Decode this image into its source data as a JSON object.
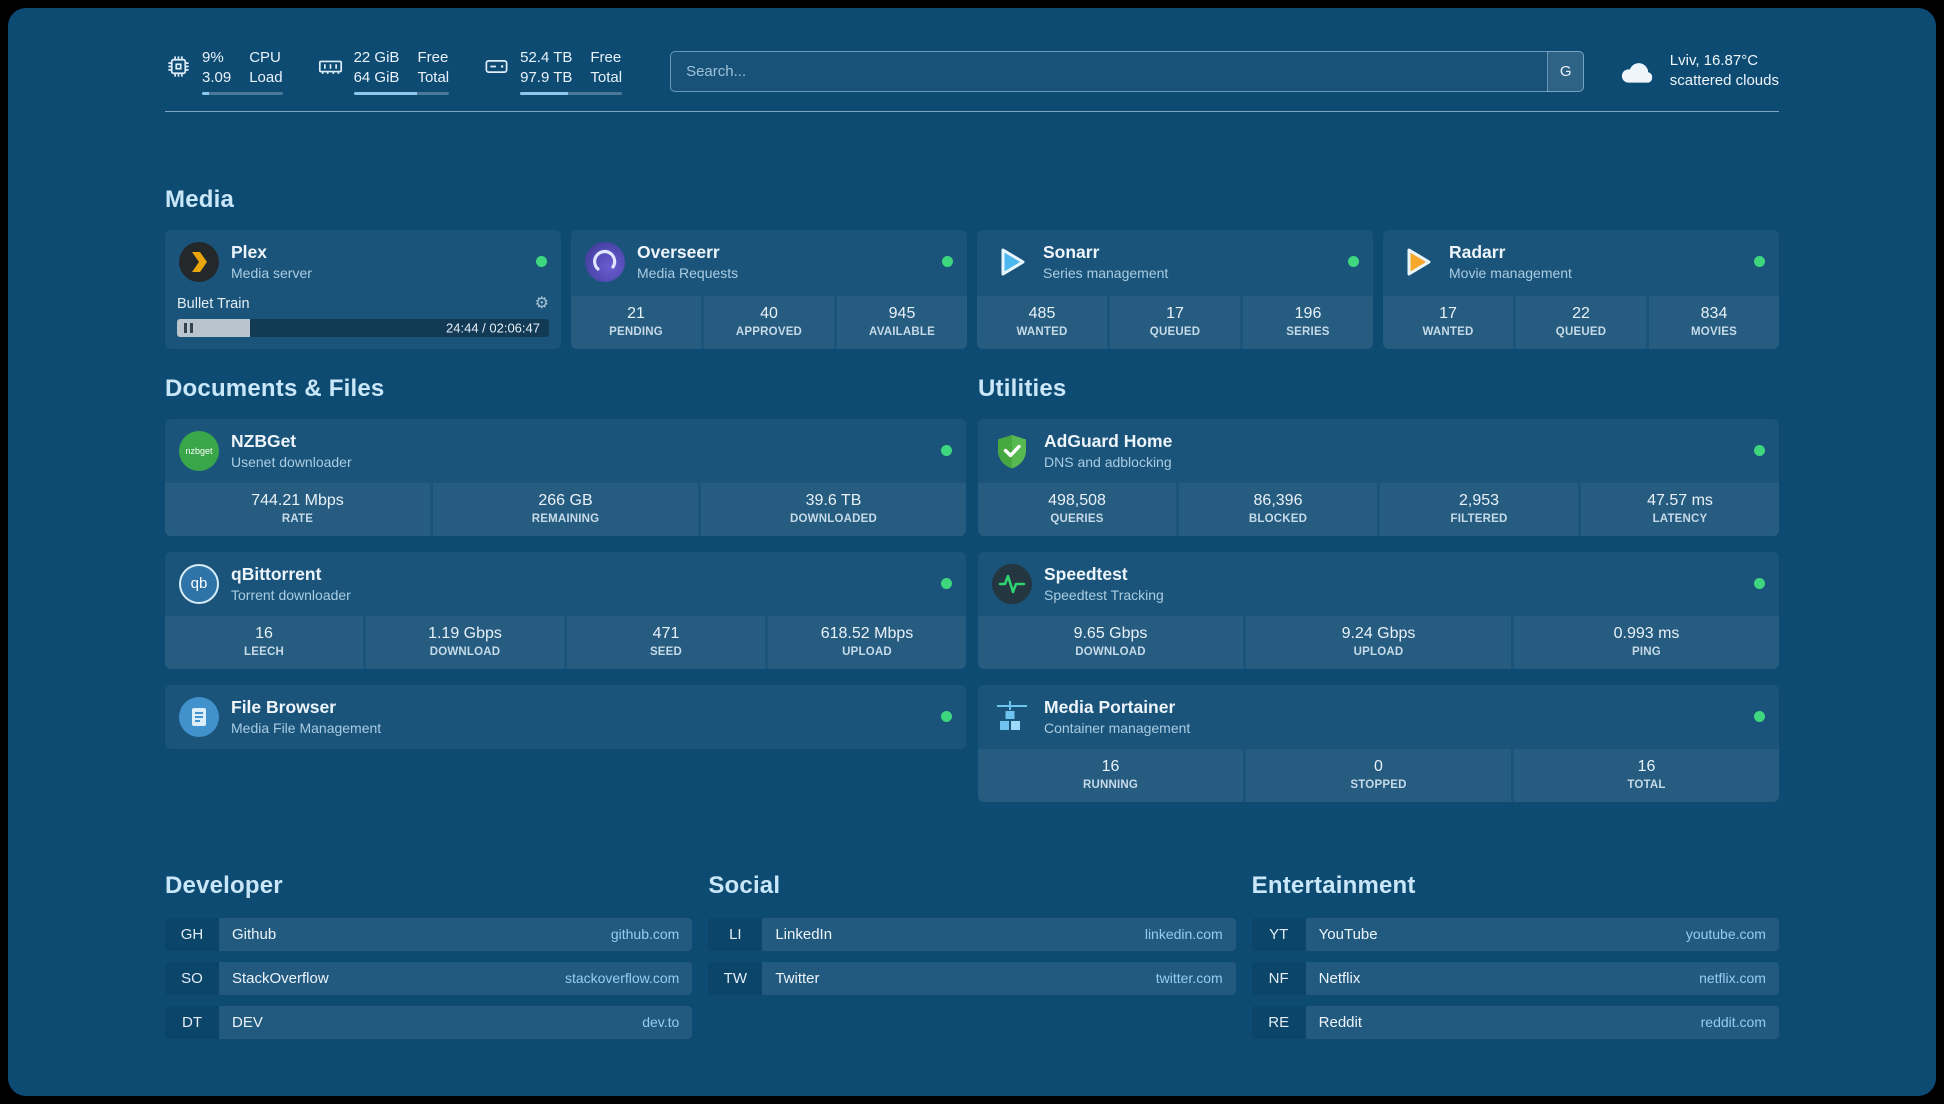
{
  "colors": {
    "background": "#0e4b73",
    "status_online": "#3ed67e",
    "accent_blue": "#8ec7ec",
    "plex_brand": "#e8a50c",
    "sonarr_brand": "#4db8ee",
    "radarr_brand": "#f6a82c",
    "nzbget_brand": "#3aa64a",
    "qbittorrent_brand": "#2f74a8",
    "filebrowser_brand": "#4192cc",
    "adguard_brand": "#57b94f",
    "speedtest_brand": "#2fd573",
    "portainer_brand": "#6fc3ef",
    "overseerr_brand": "#4f49b0"
  },
  "topbar": {
    "cpu": {
      "value1": "9%",
      "label1": "CPU",
      "value2": "3.09",
      "label2": "Load",
      "progress": 9
    },
    "ram": {
      "value1": "22 GiB",
      "label1": "Free",
      "value2": "64 GiB",
      "label2": "Total",
      "progress": 66
    },
    "disk": {
      "value1": "52.4 TB",
      "label1": "Free",
      "value2": "97.9 TB",
      "label2": "Total",
      "progress": 47
    },
    "search": {
      "placeholder": "Search...",
      "provider_button": "G"
    },
    "weather": {
      "location": "Lviv, 16.87°C",
      "condition": "scattered clouds"
    }
  },
  "sections": {
    "media": "Media",
    "documents": "Documents & Files",
    "utilities": "Utilities",
    "developer": "Developer",
    "social": "Social",
    "entertainment": "Entertainment"
  },
  "services": {
    "plex": {
      "name": "Plex",
      "subtitle": "Media server",
      "now_playing": "Bullet Train",
      "time": "24:44 / 02:06:47",
      "progress": 19.5
    },
    "overseerr": {
      "name": "Overseerr",
      "subtitle": "Media Requests",
      "stats": [
        {
          "value": "21",
          "label": "PENDING"
        },
        {
          "value": "40",
          "label": "APPROVED"
        },
        {
          "value": "945",
          "label": "AVAILABLE"
        }
      ]
    },
    "sonarr": {
      "name": "Sonarr",
      "subtitle": "Series management",
      "stats": [
        {
          "value": "485",
          "label": "WANTED"
        },
        {
          "value": "17",
          "label": "QUEUED"
        },
        {
          "value": "196",
          "label": "SERIES"
        }
      ]
    },
    "radarr": {
      "name": "Radarr",
      "subtitle": "Movie management",
      "stats": [
        {
          "value": "17",
          "label": "WANTED"
        },
        {
          "value": "22",
          "label": "QUEUED"
        },
        {
          "value": "834",
          "label": "MOVIES"
        }
      ]
    },
    "nzbget": {
      "name": "NZBGet",
      "subtitle": "Usenet downloader",
      "icon_text": "nzbget",
      "stats": [
        {
          "value": "744.21 Mbps",
          "label": "RATE"
        },
        {
          "value": "266 GB",
          "label": "REMAINING"
        },
        {
          "value": "39.6 TB",
          "label": "DOWNLOADED"
        }
      ]
    },
    "qbittorrent": {
      "name": "qBittorrent",
      "subtitle": "Torrent downloader",
      "icon_text": "qb",
      "stats": [
        {
          "value": "16",
          "label": "LEECH"
        },
        {
          "value": "1.19 Gbps",
          "label": "DOWNLOAD"
        },
        {
          "value": "471",
          "label": "SEED"
        },
        {
          "value": "618.52 Mbps",
          "label": "UPLOAD"
        }
      ]
    },
    "filebrowser": {
      "name": "File Browser",
      "subtitle": "Media File Management"
    },
    "adguard": {
      "name": "AdGuard Home",
      "subtitle": "DNS and adblocking",
      "stats": [
        {
          "value": "498,508",
          "label": "QUERIES"
        },
        {
          "value": "86,396",
          "label": "BLOCKED"
        },
        {
          "value": "2,953",
          "label": "FILTERED"
        },
        {
          "value": "47.57 ms",
          "label": "LATENCY"
        }
      ]
    },
    "speedtest": {
      "name": "Speedtest",
      "subtitle": "Speedtest Tracking",
      "stats": [
        {
          "value": "9.65 Gbps",
          "label": "DOWNLOAD"
        },
        {
          "value": "9.24 Gbps",
          "label": "UPLOAD"
        },
        {
          "value": "0.993 ms",
          "label": "PING"
        }
      ]
    },
    "portainer": {
      "name": "Media Portainer",
      "subtitle": "Container management",
      "stats": [
        {
          "value": "16",
          "label": "RUNNING"
        },
        {
          "value": "0",
          "label": "STOPPED"
        },
        {
          "value": "16",
          "label": "TOTAL"
        }
      ]
    }
  },
  "bookmarks": {
    "developer": [
      {
        "abbr": "GH",
        "name": "Github",
        "domain": "github.com"
      },
      {
        "abbr": "SO",
        "name": "StackOverflow",
        "domain": "stackoverflow.com"
      },
      {
        "abbr": "DT",
        "name": "DEV",
        "domain": "dev.to"
      }
    ],
    "social": [
      {
        "abbr": "LI",
        "name": "LinkedIn",
        "domain": "linkedin.com"
      },
      {
        "abbr": "TW",
        "name": "Twitter",
        "domain": "twitter.com"
      }
    ],
    "entertainment": [
      {
        "abbr": "YT",
        "name": "YouTube",
        "domain": "youtube.com"
      },
      {
        "abbr": "NF",
        "name": "Netflix",
        "domain": "netflix.com"
      },
      {
        "abbr": "RE",
        "name": "Reddit",
        "domain": "reddit.com"
      }
    ]
  }
}
